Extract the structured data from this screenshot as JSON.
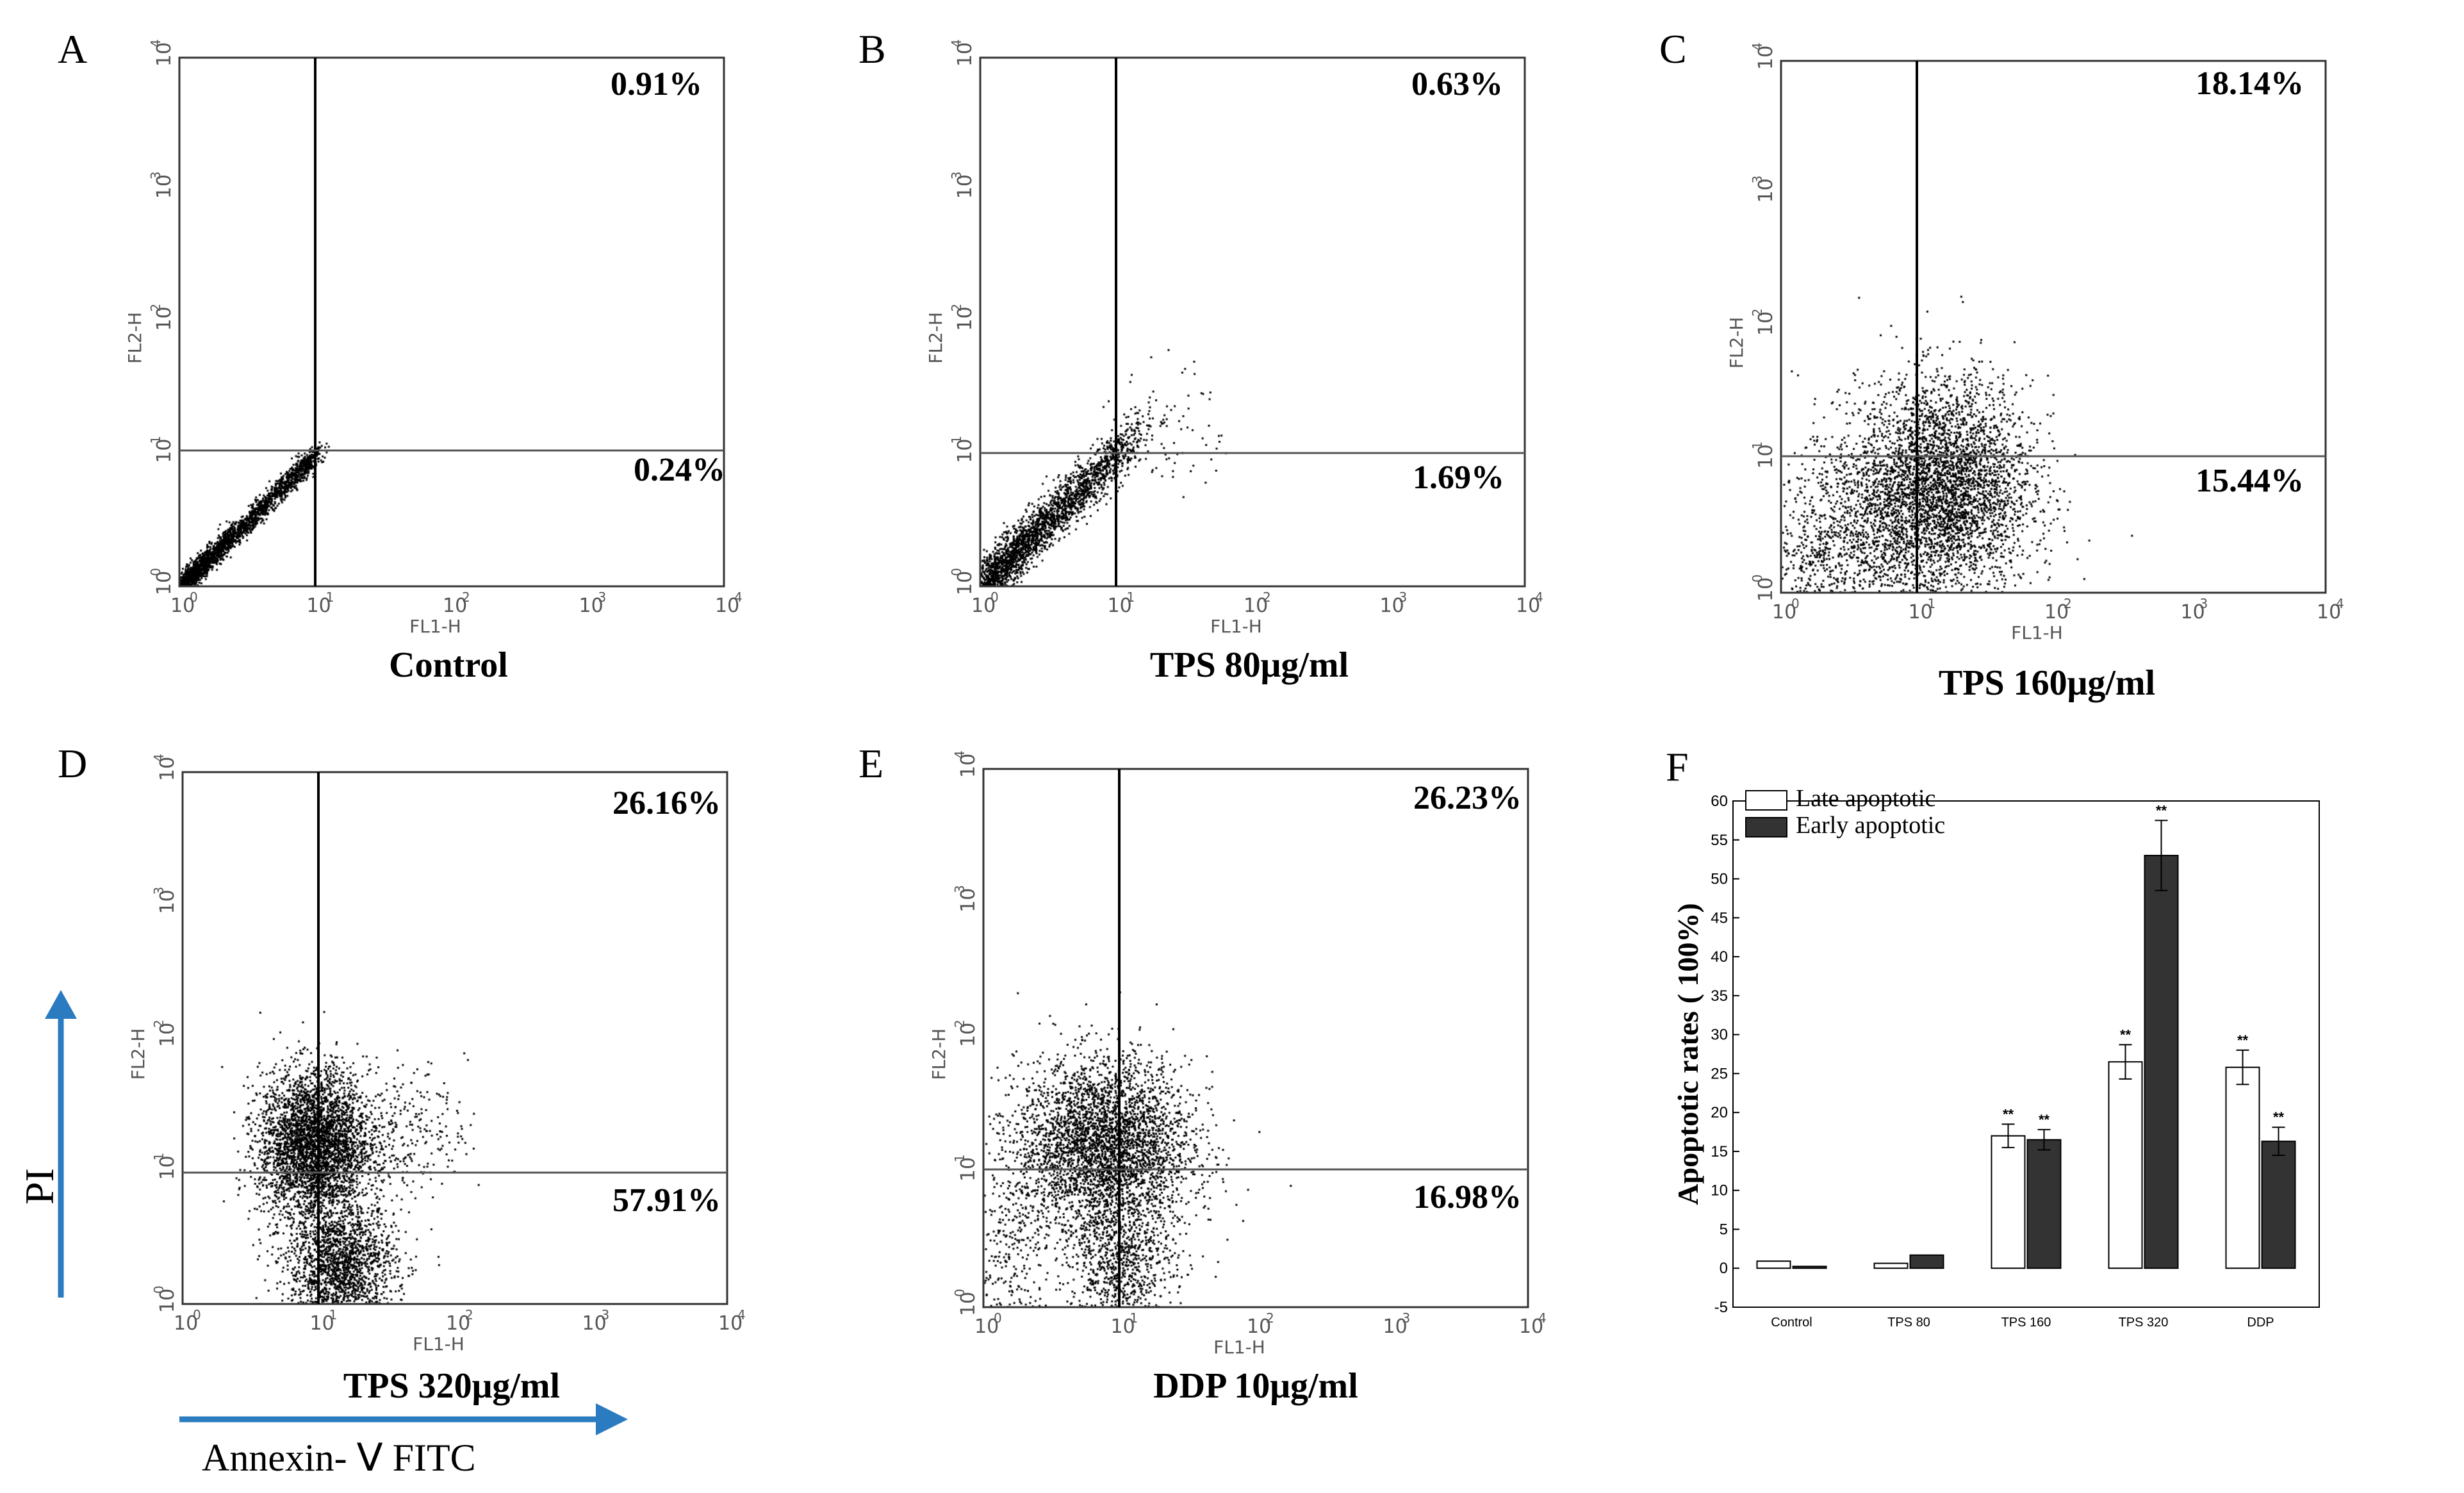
{
  "panels": [
    {
      "letter": "A",
      "condition": "Control",
      "upper_right": "0.91%",
      "lower_right": "0.24%"
    },
    {
      "letter": "B",
      "condition": "TPS  80μg/ml",
      "upper_right": "0.63%",
      "lower_right": "1.69%"
    },
    {
      "letter": "C",
      "condition": "TPS  160μg/ml",
      "upper_right": "18.14%",
      "lower_right": "15.44%"
    },
    {
      "letter": "D",
      "condition": "TPS  320μg/ml",
      "upper_right": "26.16%",
      "lower_right": "57.91%"
    },
    {
      "letter": "E",
      "condition": "DDP  10μg/ml",
      "upper_right": "26.23%",
      "lower_right": "16.98%"
    }
  ],
  "axes": {
    "x_channel": "FL1-H",
    "y_channel": "FL2-H",
    "tick_base": "10",
    "tick_exponents": [
      "0",
      "1",
      "2",
      "3",
      "4"
    ]
  },
  "side_labels": {
    "pi": "PI",
    "annexin": "Annexin- Ⅴ FITC"
  },
  "bar_panel_letter": "F",
  "chart_data": [
    {
      "type": "scatter",
      "title": "Control",
      "xlabel": "FL1-H",
      "ylabel": "FL2-H",
      "xscale": "log",
      "yscale": "log",
      "xlim": [
        1,
        10000
      ],
      "ylim": [
        1,
        10000
      ],
      "quadrant_gate": [
        10,
        10
      ],
      "upper_right_percent": 0.91,
      "lower_right_percent": 0.24
    },
    {
      "type": "scatter",
      "title": "TPS 80μg/ml",
      "xlabel": "FL1-H",
      "ylabel": "FL2-H",
      "xscale": "log",
      "yscale": "log",
      "xlim": [
        1,
        10000
      ],
      "ylim": [
        1,
        10000
      ],
      "quadrant_gate": [
        10,
        10
      ],
      "upper_right_percent": 0.63,
      "lower_right_percent": 1.69
    },
    {
      "type": "scatter",
      "title": "TPS 160μg/ml",
      "xlabel": "FL1-H",
      "ylabel": "FL2-H",
      "xscale": "log",
      "yscale": "log",
      "xlim": [
        1,
        10000
      ],
      "ylim": [
        1,
        10000
      ],
      "quadrant_gate": [
        10,
        10
      ],
      "upper_right_percent": 18.14,
      "lower_right_percent": 15.44
    },
    {
      "type": "scatter",
      "title": "TPS 320μg/ml",
      "xlabel": "FL1-H",
      "ylabel": "FL2-H",
      "xscale": "log",
      "yscale": "log",
      "xlim": [
        1,
        10000
      ],
      "ylim": [
        1,
        10000
      ],
      "quadrant_gate": [
        10,
        10
      ],
      "upper_right_percent": 26.16,
      "lower_right_percent": 57.91
    },
    {
      "type": "scatter",
      "title": "DDP 10μg/ml",
      "xlabel": "FL1-H",
      "ylabel": "FL2-H",
      "xscale": "log",
      "yscale": "log",
      "xlim": [
        1,
        10000
      ],
      "ylim": [
        1,
        10000
      ],
      "quadrant_gate": [
        10,
        10
      ],
      "upper_right_percent": 26.23,
      "lower_right_percent": 16.98
    },
    {
      "type": "bar",
      "categories": [
        "Control",
        "TPS 80",
        "TPS 160",
        "TPS 320",
        "DDP"
      ],
      "series": [
        {
          "name": "Late   apoptotic",
          "values": [
            0.91,
            0.63,
            17.0,
            26.5,
            25.8
          ],
          "errors": [
            0,
            0,
            1.5,
            2.2,
            2.2
          ],
          "color": "#ffffff",
          "significance": [
            "",
            "",
            "**",
            "**",
            "**"
          ]
        },
        {
          "name": "Early  apoptotic",
          "values": [
            0.24,
            1.69,
            16.5,
            53.0,
            16.3
          ],
          "errors": [
            0,
            0,
            1.3,
            4.5,
            1.8
          ],
          "color": "#333333",
          "significance": [
            "",
            "",
            "**",
            "**",
            "**"
          ]
        }
      ],
      "title": "",
      "xlabel": "",
      "ylabel": "Apoptotic rates ( 100%)",
      "ylim": [
        -5,
        60
      ],
      "yticks": [
        "-5",
        "0",
        "5",
        "10",
        "15",
        "20",
        "25",
        "30",
        "35",
        "40",
        "45",
        "50",
        "55",
        "60"
      ]
    }
  ]
}
